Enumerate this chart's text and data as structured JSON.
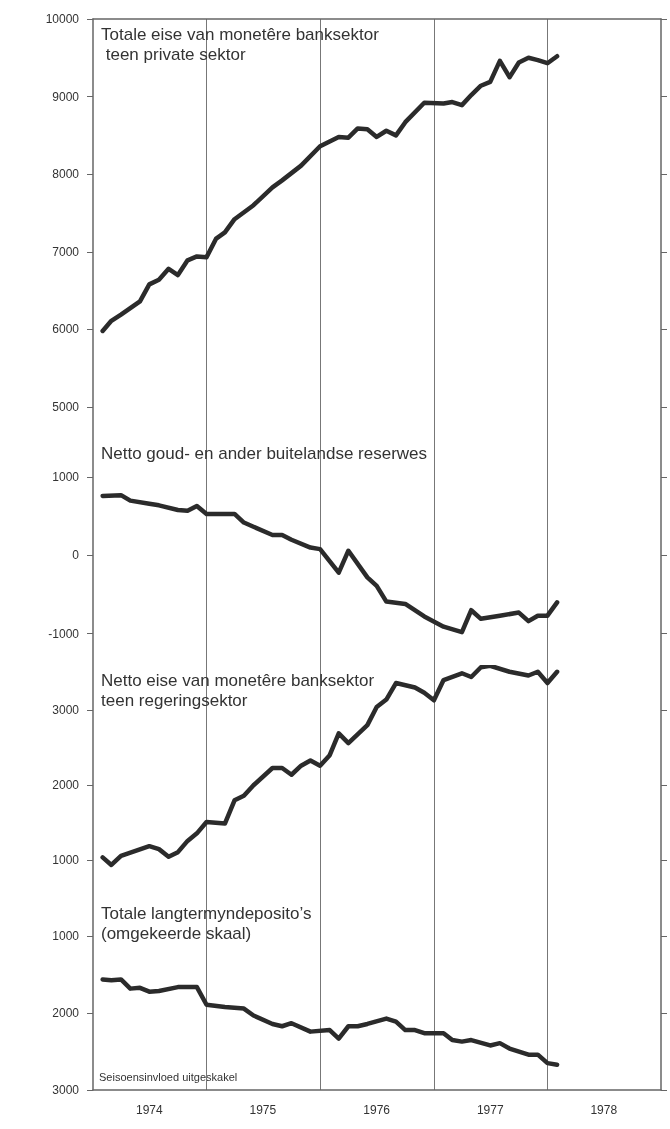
{
  "chart_data": [
    {
      "type": "line",
      "title": "Totale eise van monetêre banksektor teen private sektor",
      "color": "#2b2b2b",
      "line_style": "solid",
      "grid": "x",
      "tick_labels": "y",
      "xlim": [
        "1974",
        "1979"
      ],
      "xticks": [
        {
          "value": "1975",
          "label": null
        },
        {
          "value": "1976",
          "label": null
        },
        {
          "value": "1977",
          "label": null
        },
        {
          "value": "1978",
          "label": null
        }
      ],
      "ylim": [
        4600,
        10000
      ],
      "yticks": [
        5000,
        6000,
        7000,
        8000,
        9000,
        10000
      ],
      "x": [
        "1974-02",
        "1974-03",
        "1974-04",
        "1974-06",
        "1974-07",
        "1974-08",
        "1974-09",
        "1974-10",
        "1974-11",
        "1974-12",
        "1975-01",
        "1975-02",
        "1975-03",
        "1975-04",
        "1975-06",
        "1975-08",
        "1975-09",
        "1975-11",
        "1976-01",
        "1976-03",
        "1976-04",
        "1976-05",
        "1976-06",
        "1976-07",
        "1976-08",
        "1976-09",
        "1976-10",
        "1976-12",
        "1977-02",
        "1977-03",
        "1977-04",
        "1977-05",
        "1977-06",
        "1977-07",
        "1977-08",
        "1977-09",
        "1977-10",
        "1977-11",
        "1977-12",
        "1978-01",
        "1978-02"
      ],
      "values": [
        5980,
        6110,
        6190,
        6360,
        6580,
        6640,
        6780,
        6700,
        6890,
        6940,
        6930,
        7170,
        7250,
        7420,
        7600,
        7830,
        7920,
        8110,
        8360,
        8480,
        8470,
        8590,
        8580,
        8480,
        8560,
        8500,
        8670,
        8920,
        8910,
        8930,
        8890,
        9020,
        9140,
        9190,
        9460,
        9250,
        9440,
        9500,
        9470,
        9430,
        9520
      ]
    },
    {
      "type": "line",
      "title": "Netto goud- en ander buitelandse reserwes",
      "color": "#2b2b2b",
      "line_style": "solid",
      "grid": "x",
      "tick_labels": "y",
      "xlim": [
        "1974",
        "1979"
      ],
      "xticks": [
        {
          "value": "1975",
          "label": null
        },
        {
          "value": "1976",
          "label": null
        },
        {
          "value": "1977",
          "label": null
        },
        {
          "value": "1978",
          "label": null
        }
      ],
      "ylim": [
        -1400,
        1500
      ],
      "yticks": [
        -1000,
        0,
        1000
      ],
      "x": [
        "1974-02",
        "1974-04",
        "1974-05",
        "1974-07",
        "1974-08",
        "1974-10",
        "1974-11",
        "1974-12",
        "1975-01",
        "1975-04",
        "1975-05",
        "1975-08",
        "1975-09",
        "1975-10",
        "1975-12",
        "1976-01",
        "1976-03",
        "1976-04",
        "1976-06",
        "1976-07",
        "1976-08",
        "1976-10",
        "1976-12",
        "1977-02",
        "1977-04",
        "1977-05",
        "1977-06",
        "1977-08",
        "1977-10",
        "1977-11",
        "1977-12",
        "1978-01",
        "1978-02"
      ],
      "values": [
        760,
        770,
        700,
        660,
        640,
        580,
        570,
        630,
        530,
        530,
        420,
        260,
        260,
        200,
        100,
        80,
        -220,
        60,
        -280,
        -390,
        -590,
        -620,
        -780,
        -910,
        -980,
        -700,
        -810,
        -770,
        -730,
        -840,
        -770,
        -770,
        -600
      ]
    },
    {
      "type": "line",
      "title": "Netto eise van monetêre banksektor teen regeringsektor",
      "color": "#2b2b2b",
      "line_style": "solid",
      "grid": "x",
      "tick_labels": "y",
      "xlim": [
        "1974",
        "1979"
      ],
      "xticks": [
        {
          "value": "1975",
          "label": null
        },
        {
          "value": "1976",
          "label": null
        },
        {
          "value": "1977",
          "label": null
        },
        {
          "value": "1978",
          "label": null
        }
      ],
      "ylim": [
        500,
        3600
      ],
      "yticks": [
        1000,
        2000,
        3000
      ],
      "x": [
        "1974-02",
        "1974-03",
        "1974-04",
        "1974-07",
        "1974-08",
        "1974-09",
        "1974-10",
        "1974-11",
        "1974-12",
        "1975-01",
        "1975-03",
        "1975-04",
        "1975-05",
        "1975-06",
        "1975-08",
        "1975-09",
        "1975-10",
        "1975-11",
        "1975-12",
        "1976-01",
        "1976-02",
        "1976-03",
        "1976-04",
        "1976-06",
        "1976-07",
        "1976-08",
        "1976-09",
        "1976-11",
        "1976-12",
        "1977-01",
        "1977-02",
        "1977-04",
        "1977-05",
        "1977-06",
        "1977-07",
        "1977-09",
        "1977-11",
        "1977-12",
        "1978-01",
        "1978-02"
      ],
      "values": [
        1040,
        940,
        1060,
        1190,
        1150,
        1050,
        1110,
        1260,
        1360,
        1510,
        1490,
        1800,
        1860,
        2000,
        2230,
        2230,
        2140,
        2260,
        2330,
        2260,
        2400,
        2690,
        2560,
        2800,
        3040,
        3140,
        3360,
        3300,
        3230,
        3130,
        3400,
        3490,
        3440,
        3570,
        3590,
        3510,
        3460,
        3510,
        3360,
        3510
      ]
    },
    {
      "type": "line",
      "title": "Totale langtermyndeposito’s (omgekeerde skaal)",
      "color": "#2b2b2b",
      "line_style": "solid",
      "grid": "x",
      "xlim": [
        "1974",
        "1979"
      ],
      "xticks": [
        {
          "value": "1974-07",
          "label": "1974"
        },
        {
          "value": "1975",
          "label": null
        },
        {
          "value": "1975-07",
          "label": "1975"
        },
        {
          "value": "1976",
          "label": null
        },
        {
          "value": "1976-07",
          "label": "1976"
        },
        {
          "value": "1977",
          "label": null
        },
        {
          "value": "1977-07",
          "label": "1977"
        },
        {
          "value": "1978",
          "label": null
        },
        {
          "value": "1978-07",
          "label": "1978"
        }
      ],
      "ylim": [
        3000,
        500
      ],
      "yticks": [
        1000,
        2000,
        3000
      ],
      "annotations": [
        "Seisoensinvloed uitgeskakel"
      ],
      "x": [
        "1974-02",
        "1974-03",
        "1974-04",
        "1974-05",
        "1974-06",
        "1974-07",
        "1974-08",
        "1974-10",
        "1974-12",
        "1975-01",
        "1975-03",
        "1975-05",
        "1975-06",
        "1975-08",
        "1975-09",
        "1975-10",
        "1975-12",
        "1976-02",
        "1976-03",
        "1976-04",
        "1976-05",
        "1976-06",
        "1976-08",
        "1976-09",
        "1976-10",
        "1976-11",
        "1976-12",
        "1977-02",
        "1977-03",
        "1977-04",
        "1977-05",
        "1977-07",
        "1977-08",
        "1977-09",
        "1977-11",
        "1977-12",
        "1978-01",
        "1978-02"
      ],
      "values": [
        1560,
        1570,
        1560,
        1680,
        1670,
        1720,
        1710,
        1660,
        1660,
        1890,
        1920,
        1940,
        2030,
        2140,
        2170,
        2130,
        2240,
        2220,
        2330,
        2170,
        2170,
        2140,
        2070,
        2110,
        2220,
        2220,
        2260,
        2260,
        2350,
        2370,
        2350,
        2420,
        2390,
        2460,
        2540,
        2540,
        2650,
        2670
      ]
    }
  ]
}
